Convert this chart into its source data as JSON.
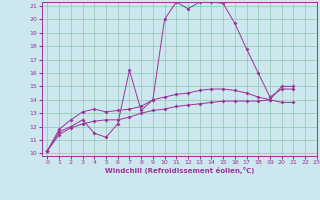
{
  "xlabel": "Windchill (Refroidissement éolien,°C)",
  "bg_color": "#cce8ee",
  "grid_color": "#99ccbb",
  "line_color": "#993399",
  "xmin": 0,
  "xmax": 23,
  "ymin": 10,
  "ymax": 21,
  "series": [
    [
      10.2,
      11.6,
      12.0,
      12.5,
      11.5,
      11.2,
      12.2,
      16.2,
      13.2,
      14.0,
      20.0,
      21.3,
      20.8,
      21.3,
      21.3,
      21.2,
      19.7,
      17.8,
      16.0,
      14.2,
      14.8,
      14.8
    ],
    [
      10.2,
      11.8,
      12.5,
      13.1,
      13.3,
      13.1,
      13.2,
      13.3,
      13.5,
      14.0,
      14.2,
      14.4,
      14.5,
      14.7,
      14.8,
      14.8,
      14.7,
      14.5,
      14.2,
      14.0,
      13.8,
      13.8
    ],
    [
      10.2,
      11.4,
      11.9,
      12.2,
      12.4,
      12.5,
      12.5,
      12.7,
      13.0,
      13.2,
      13.3,
      13.5,
      13.6,
      13.7,
      13.8,
      13.9,
      13.9,
      13.9,
      13.9,
      14.0,
      15.0,
      15.0
    ]
  ]
}
